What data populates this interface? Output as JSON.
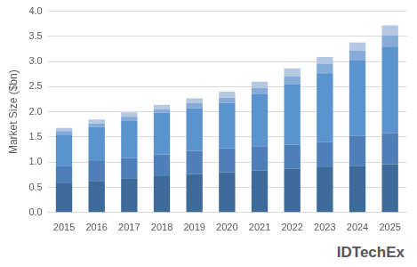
{
  "chart_data": {
    "type": "bar",
    "stacked": true,
    "grid": true,
    "y_label": "Market Size ($bn)",
    "annotations": [
      "IDTechEx"
    ],
    "categories": [
      "2015",
      "2016",
      "2017",
      "2018",
      "2019",
      "2020",
      "2021",
      "2022",
      "2023",
      "2024",
      "2025"
    ],
    "series": [
      {
        "color": "#3d6a98",
        "values": [
          0.58,
          0.63,
          0.68,
          0.72,
          0.76,
          0.8,
          0.83,
          0.87,
          0.9,
          0.93,
          0.96
        ]
      },
      {
        "color": "#4f7fb8",
        "values": [
          0.35,
          0.39,
          0.4,
          0.43,
          0.46,
          0.48,
          0.49,
          0.48,
          0.5,
          0.59,
          0.62
        ]
      },
      {
        "color": "#5b93cf",
        "values": [
          0.62,
          0.68,
          0.74,
          0.83,
          0.85,
          0.9,
          1.03,
          1.2,
          1.37,
          1.5,
          1.72
        ]
      },
      {
        "color": "#86abd9",
        "values": [
          0.07,
          0.07,
          0.08,
          0.07,
          0.1,
          0.1,
          0.12,
          0.15,
          0.18,
          0.2,
          0.22
        ]
      },
      {
        "color": "#b4c8e2",
        "values": [
          0.06,
          0.08,
          0.09,
          0.09,
          0.1,
          0.12,
          0.13,
          0.16,
          0.14,
          0.16,
          0.2
        ]
      }
    ],
    "ylim": [
      0,
      4
    ],
    "yticks": [
      {
        "value": 0,
        "label": "0.0"
      },
      {
        "value": 0.5,
        "label": "0.5"
      },
      {
        "value": 1,
        "label": "1.0"
      },
      {
        "value": 1.5,
        "label": "1.5"
      },
      {
        "value": 2,
        "label": "2.0"
      },
      {
        "value": 2.5,
        "label": "2.5"
      },
      {
        "value": 3,
        "label": "3.0"
      },
      {
        "value": 3.5,
        "label": "3.5"
      },
      {
        "value": 4,
        "label": "4.0"
      }
    ]
  }
}
